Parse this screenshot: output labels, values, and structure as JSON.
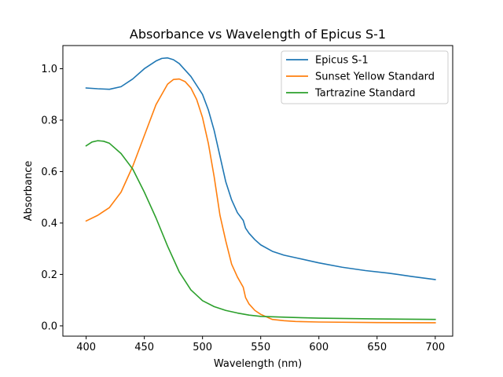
{
  "chart_data": {
    "type": "line",
    "title": "Absorbance vs Wavelength of Epicus S-1",
    "xlabel": "Wavelength (nm)",
    "ylabel": "Absorbance",
    "xlim": [
      380,
      715
    ],
    "ylim": [
      -0.04,
      1.09
    ],
    "xticks": [
      400,
      450,
      500,
      550,
      600,
      650,
      700
    ],
    "yticks": [
      0.0,
      0.2,
      0.4,
      0.6,
      0.8,
      1.0
    ],
    "xtick_labels": [
      "400",
      "450",
      "500",
      "550",
      "600",
      "650",
      "700"
    ],
    "ytick_labels": [
      "0.0",
      "0.2",
      "0.4",
      "0.6",
      "0.8",
      "1.0"
    ],
    "grid": false,
    "legend_position": "upper right",
    "series": [
      {
        "name": "Epicus S-1",
        "color": "#1f77b4",
        "x": [
          400,
          410,
          420,
          430,
          440,
          450,
          460,
          465,
          470,
          475,
          480,
          490,
          500,
          505,
          510,
          515,
          520,
          525,
          530,
          535,
          537,
          540,
          545,
          550,
          560,
          570,
          580,
          600,
          620,
          640,
          660,
          680,
          700
        ],
        "y": [
          0.925,
          0.922,
          0.92,
          0.93,
          0.96,
          1.0,
          1.03,
          1.04,
          1.042,
          1.035,
          1.02,
          0.97,
          0.9,
          0.84,
          0.76,
          0.66,
          0.56,
          0.49,
          0.44,
          0.41,
          0.38,
          0.36,
          0.335,
          0.315,
          0.29,
          0.275,
          0.265,
          0.245,
          0.228,
          0.215,
          0.205,
          0.192,
          0.18
        ]
      },
      {
        "name": "Sunset Yellow Standard",
        "color": "#ff7f0e",
        "x": [
          400,
          410,
          420,
          430,
          440,
          450,
          460,
          470,
          475,
          480,
          485,
          490,
          495,
          500,
          505,
          510,
          515,
          520,
          525,
          530,
          535,
          537,
          540,
          545,
          550,
          560,
          570,
          580,
          600,
          650,
          700
        ],
        "y": [
          0.408,
          0.43,
          0.46,
          0.52,
          0.62,
          0.74,
          0.86,
          0.94,
          0.958,
          0.96,
          0.95,
          0.925,
          0.88,
          0.81,
          0.71,
          0.58,
          0.43,
          0.33,
          0.24,
          0.19,
          0.15,
          0.11,
          0.085,
          0.06,
          0.045,
          0.025,
          0.02,
          0.017,
          0.015,
          0.013,
          0.012
        ]
      },
      {
        "name": "Tartrazine Standard",
        "color": "#2ca02c",
        "x": [
          400,
          405,
          410,
          415,
          420,
          430,
          440,
          450,
          460,
          470,
          480,
          490,
          500,
          510,
          520,
          530,
          540,
          550,
          575,
          600,
          650,
          700
        ],
        "y": [
          0.7,
          0.715,
          0.72,
          0.718,
          0.71,
          0.67,
          0.61,
          0.52,
          0.42,
          0.31,
          0.21,
          0.14,
          0.098,
          0.075,
          0.06,
          0.05,
          0.042,
          0.037,
          0.033,
          0.03,
          0.027,
          0.025
        ]
      }
    ]
  }
}
